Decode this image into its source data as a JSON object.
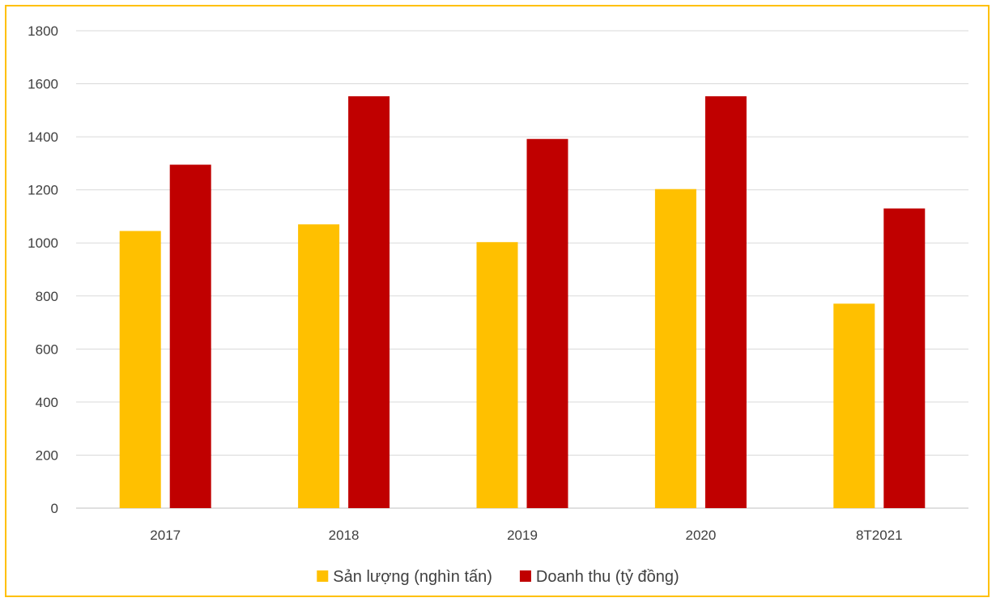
{
  "chart_data": {
    "type": "bar",
    "categories": [
      "2017",
      "2018",
      "2019",
      "2020",
      "8T2021"
    ],
    "series": [
      {
        "name": "Sản lượng (nghìn tấn)",
        "color": "#ffc000",
        "values": [
          1045,
          1070,
          1003,
          1203,
          771
        ]
      },
      {
        "name": "Doanh thu (tỷ đồng)",
        "color": "#c00000",
        "values": [
          1295,
          1553,
          1392,
          1553,
          1130
        ]
      }
    ],
    "ylim": [
      0,
      1800
    ],
    "yticks": [
      0,
      200,
      400,
      600,
      800,
      1000,
      1200,
      1400,
      1600,
      1800
    ],
    "grid": true,
    "legend_position": "bottom",
    "title": "",
    "xlabel": "",
    "ylabel": ""
  }
}
